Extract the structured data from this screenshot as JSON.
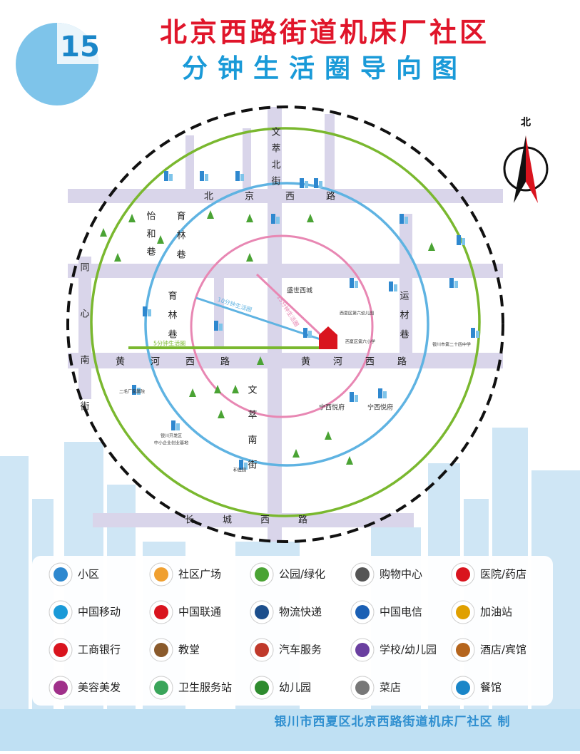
{
  "header": {
    "number": "15",
    "title_line1": "北京西路街道机床厂社区",
    "title_line2": "分钟生活圈导向图"
  },
  "compass": "北",
  "map": {
    "streets": [
      "北京西路",
      "黄河西路",
      "黄河西路",
      "长城西路",
      "文萃北街",
      "文萃南街",
      "同心南街",
      "怡和巷",
      "育林巷",
      "育林巷",
      "运材巷"
    ],
    "rings": [
      "5分钟生活圈",
      "10分钟生活圈",
      "15分钟生活圈"
    ],
    "places": [
      "宁西悦府",
      "宁西悦府",
      "盛世西城",
      "银川开发区",
      "中小企业创业基地",
      "西夏区第六小学",
      "西夏区第六幼儿园",
      "银川市第二十四中学",
      "和佳园",
      "二毛厂家属院"
    ]
  },
  "legend": {
    "items": [
      "小区",
      "社区广场",
      "公园/绿化",
      "购物中心",
      "医院/药店",
      "中国移动",
      "中国联通",
      "物流快递",
      "中国电信",
      "加油站",
      "工商银行",
      "教堂",
      "汽车服务",
      "学校/幼儿园",
      "酒店/宾馆",
      "美容美发",
      "卫生服务站",
      "幼儿园",
      "菜店",
      "餐馆"
    ]
  },
  "footer": "银川市西夏区北京西路街道机床厂社区 制"
}
